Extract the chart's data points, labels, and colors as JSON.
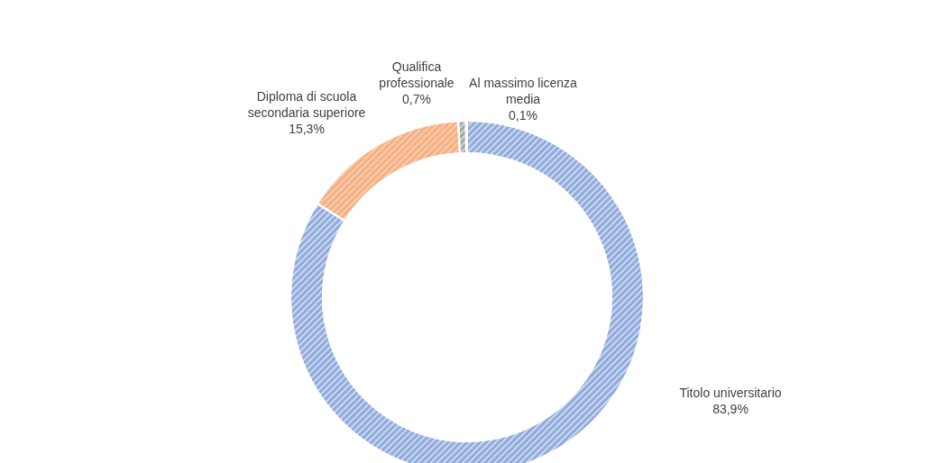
{
  "chart_data": {
    "type": "donut",
    "categories": [
      "Titolo universitario",
      "Diploma di scuola secondaria superiore",
      "Qualifica professionale",
      "Al massimo licenza media"
    ],
    "values": [
      83.9,
      15.3,
      0.7,
      0.1
    ],
    "value_labels": [
      "83,9%",
      "15,3%",
      "0,7%",
      "0,1%"
    ],
    "colors": [
      "#8faadc",
      "#f4b183",
      "#a5a5a5",
      "#ffd966"
    ],
    "legend": false
  }
}
